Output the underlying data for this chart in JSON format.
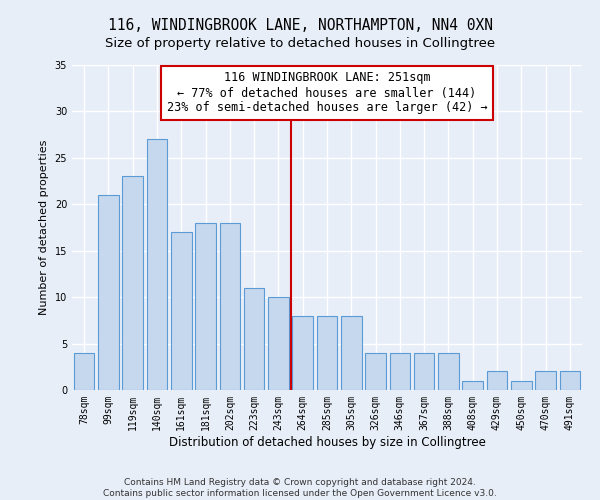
{
  "title": "116, WINDINGBROOK LANE, NORTHAMPTON, NN4 0XN",
  "subtitle": "Size of property relative to detached houses in Collingtree",
  "xlabel": "Distribution of detached houses by size in Collingtree",
  "ylabel": "Number of detached properties",
  "bar_labels": [
    "78sqm",
    "99sqm",
    "119sqm",
    "140sqm",
    "161sqm",
    "181sqm",
    "202sqm",
    "223sqm",
    "243sqm",
    "264sqm",
    "285sqm",
    "305sqm",
    "326sqm",
    "346sqm",
    "367sqm",
    "388sqm",
    "408sqm",
    "429sqm",
    "450sqm",
    "470sqm",
    "491sqm"
  ],
  "bar_values": [
    4,
    21,
    23,
    27,
    17,
    18,
    18,
    11,
    10,
    8,
    8,
    8,
    4,
    4,
    4,
    4,
    1,
    2,
    1,
    2,
    2
  ],
  "bar_color": "#c5d8ee",
  "bar_edge_color": "#5b9bd5",
  "vline_x": 8.5,
  "vline_color": "#cc0000",
  "annotation_text": "116 WINDINGBROOK LANE: 251sqm\n← 77% of detached houses are smaller (144)\n23% of semi-detached houses are larger (42) →",
  "annotation_box_color": "#ffffff",
  "annotation_box_edge_color": "#cc0000",
  "ylim": [
    0,
    35
  ],
  "yticks": [
    0,
    5,
    10,
    15,
    20,
    25,
    30,
    35
  ],
  "background_color": "#e8eef8",
  "grid_color": "#ffffff",
  "footer_text": "Contains HM Land Registry data © Crown copyright and database right 2024.\nContains public sector information licensed under the Open Government Licence v3.0.",
  "title_fontsize": 10.5,
  "subtitle_fontsize": 9.5,
  "xlabel_fontsize": 8.5,
  "ylabel_fontsize": 8,
  "tick_fontsize": 7,
  "annotation_fontsize": 8.5,
  "footer_fontsize": 6.5
}
